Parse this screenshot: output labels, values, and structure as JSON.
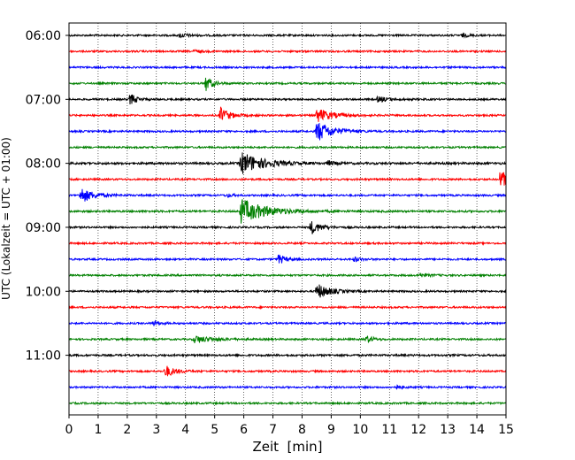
{
  "chart_data": {
    "type": "line",
    "title": "",
    "xlabel": "Zeit  [min]",
    "ylabel": "UTC (Lokalzeit = UTC + 01:00)",
    "xlim": [
      0,
      15
    ],
    "x_ticks": [
      0,
      1,
      2,
      3,
      4,
      5,
      6,
      7,
      8,
      9,
      10,
      11,
      12,
      13,
      14,
      15
    ],
    "grid": "vertical-dotted",
    "y_ticks": [
      {
        "label": "06:00",
        "trace_index": 0
      },
      {
        "label": "07:00",
        "trace_index": 4
      },
      {
        "label": "08:00",
        "trace_index": 8
      },
      {
        "label": "09:00",
        "trace_index": 12
      },
      {
        "label": "10:00",
        "trace_index": 16
      },
      {
        "label": "11:00",
        "trace_index": 20
      }
    ],
    "trace_interval_min": 15,
    "color_cycle": [
      "#000000",
      "#ff0000",
      "#0000ff",
      "#008000"
    ],
    "traces": [
      {
        "start": "06:00",
        "noise": 1.0,
        "events": [
          {
            "t": 3.8,
            "amp": 2.5,
            "dur": 0.3
          },
          {
            "t": 13.5,
            "amp": 2.0,
            "dur": 0.2
          }
        ]
      },
      {
        "start": "06:15",
        "noise": 1.0,
        "events": [
          {
            "t": 4.3,
            "amp": 1.8,
            "dur": 0.2
          }
        ]
      },
      {
        "start": "06:30",
        "noise": 1.0,
        "events": []
      },
      {
        "start": "06:45",
        "noise": 1.0,
        "events": [
          {
            "t": 4.7,
            "amp": 9.0,
            "dur": 0.2
          }
        ]
      },
      {
        "start": "07:00",
        "noise": 1.0,
        "events": [
          {
            "t": 2.1,
            "amp": 7.0,
            "dur": 0.2
          },
          {
            "t": 10.6,
            "amp": 3.0,
            "dur": 0.4
          }
        ]
      },
      {
        "start": "07:15",
        "noise": 1.0,
        "events": [
          {
            "t": 5.2,
            "amp": 9.0,
            "dur": 0.3
          },
          {
            "t": 8.5,
            "amp": 8.0,
            "dur": 0.5
          }
        ]
      },
      {
        "start": "07:30",
        "noise": 1.0,
        "events": [
          {
            "t": 8.5,
            "amp": 12.0,
            "dur": 0.5
          }
        ]
      },
      {
        "start": "07:45",
        "noise": 1.0,
        "events": []
      },
      {
        "start": "08:00",
        "noise": 1.2,
        "events": [
          {
            "t": 5.9,
            "amp": 13.0,
            "dur": 0.7
          },
          {
            "t": 8.9,
            "amp": 2.5,
            "dur": 0.2
          }
        ]
      },
      {
        "start": "08:15",
        "noise": 1.0,
        "events": [
          {
            "t": 14.8,
            "amp": 10.0,
            "dur": 0.4
          }
        ]
      },
      {
        "start": "08:30",
        "noise": 1.0,
        "events": [
          {
            "t": 0.4,
            "amp": 9.0,
            "dur": 0.4
          },
          {
            "t": 5.4,
            "amp": 2.0,
            "dur": 0.2
          }
        ]
      },
      {
        "start": "08:45",
        "noise": 1.1,
        "events": [
          {
            "t": 5.9,
            "amp": 14.0,
            "dur": 0.8
          }
        ]
      },
      {
        "start": "09:00",
        "noise": 1.0,
        "events": [
          {
            "t": 8.3,
            "amp": 8.0,
            "dur": 0.3
          }
        ]
      },
      {
        "start": "09:15",
        "noise": 1.0,
        "events": []
      },
      {
        "start": "09:30",
        "noise": 1.0,
        "events": [
          {
            "t": 7.2,
            "amp": 6.0,
            "dur": 0.2
          },
          {
            "t": 9.8,
            "amp": 2.5,
            "dur": 0.2
          }
        ]
      },
      {
        "start": "09:45",
        "noise": 1.0,
        "events": [
          {
            "t": 12.0,
            "amp": 2.0,
            "dur": 0.3
          }
        ]
      },
      {
        "start": "10:00",
        "noise": 1.0,
        "events": [
          {
            "t": 8.5,
            "amp": 9.0,
            "dur": 0.4
          }
        ]
      },
      {
        "start": "10:15",
        "noise": 1.0,
        "events": []
      },
      {
        "start": "10:30",
        "noise": 1.0,
        "events": [
          {
            "t": 2.9,
            "amp": 3.0,
            "dur": 0.2
          }
        ]
      },
      {
        "start": "10:45",
        "noise": 1.0,
        "events": [
          {
            "t": 4.3,
            "amp": 4.0,
            "dur": 0.6
          },
          {
            "t": 10.2,
            "amp": 4.5,
            "dur": 0.2
          }
        ]
      },
      {
        "start": "11:00",
        "noise": 1.1,
        "events": []
      },
      {
        "start": "11:15",
        "noise": 1.0,
        "events": [
          {
            "t": 3.3,
            "amp": 7.0,
            "dur": 0.3
          }
        ]
      },
      {
        "start": "11:30",
        "noise": 1.0,
        "events": [
          {
            "t": 11.2,
            "amp": 2.5,
            "dur": 0.2
          }
        ]
      },
      {
        "start": "11:45",
        "noise": 1.0,
        "events": []
      }
    ]
  }
}
